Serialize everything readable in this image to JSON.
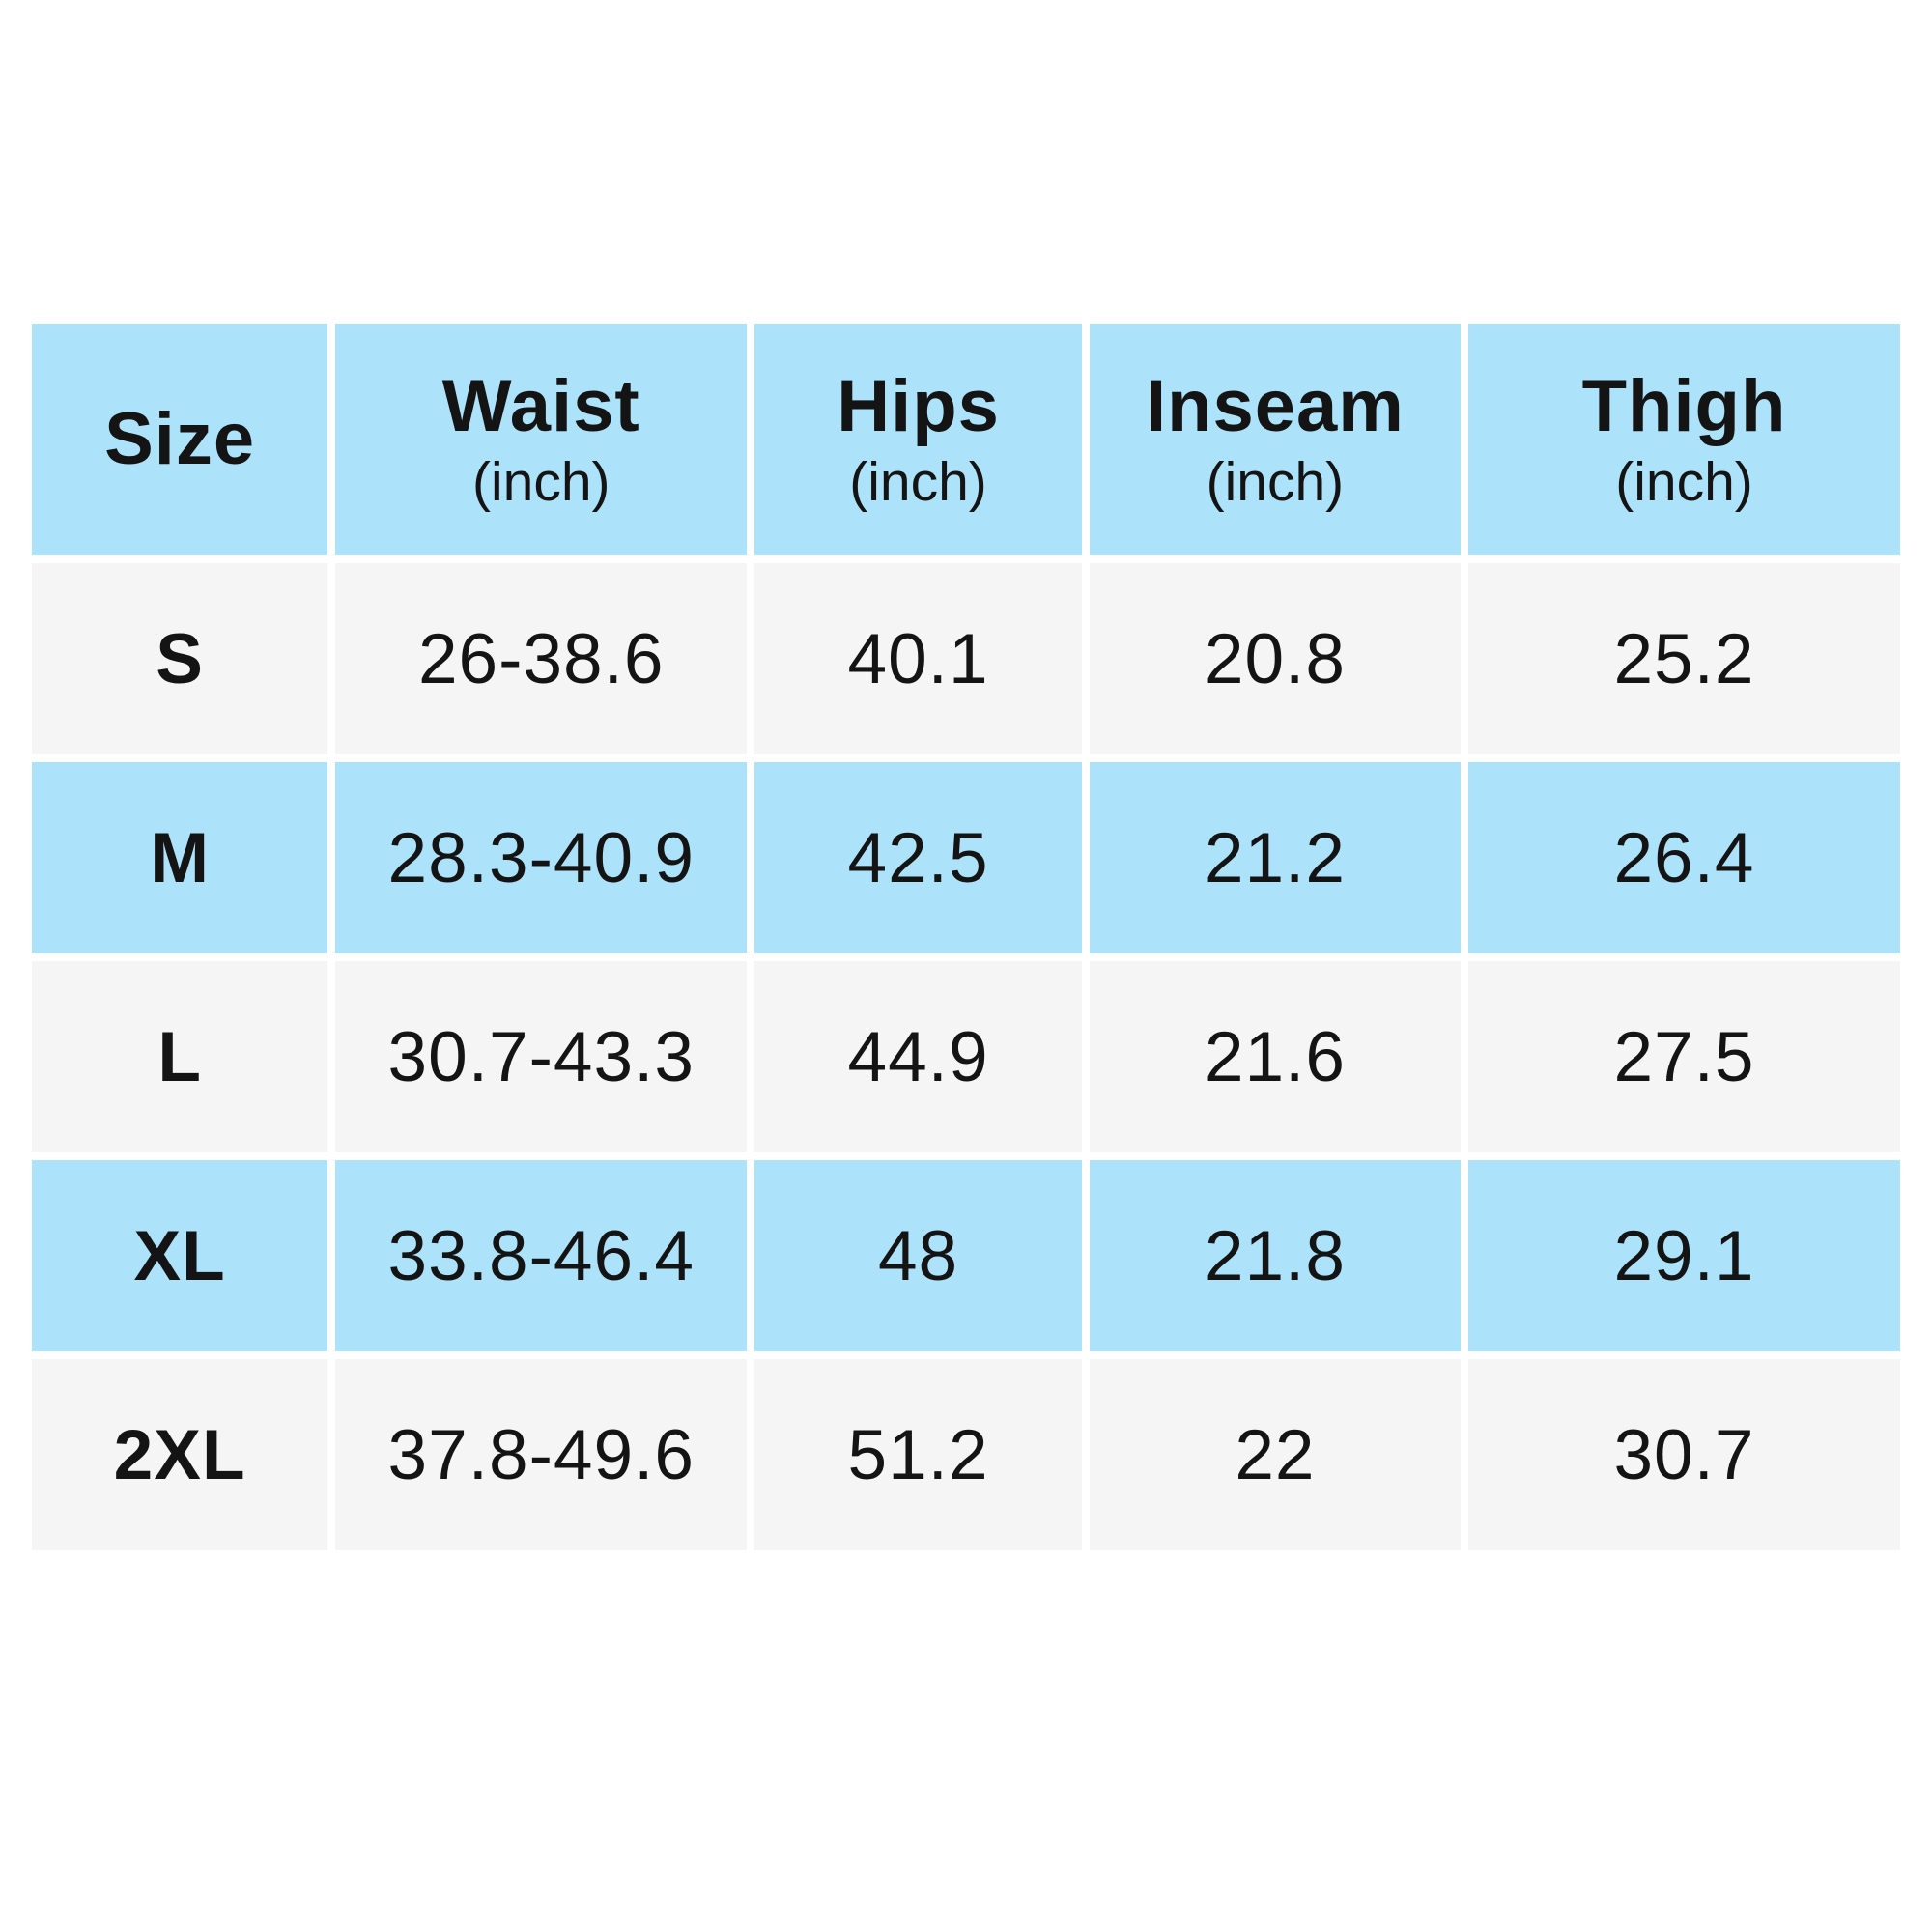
{
  "chart_data": {
    "type": "table",
    "columns": [
      {
        "label": "Size",
        "unit": ""
      },
      {
        "label": "Waist",
        "unit": "(inch)"
      },
      {
        "label": "Hips",
        "unit": "(inch)"
      },
      {
        "label": "Inseam",
        "unit": "(inch)"
      },
      {
        "label": "Thigh",
        "unit": "(inch)"
      }
    ],
    "rows": [
      {
        "size": "S",
        "waist": "26-38.6",
        "hips": "40.1",
        "inseam": "20.8",
        "thigh": "25.2"
      },
      {
        "size": "M",
        "waist": "28.3-40.9",
        "hips": "42.5",
        "inseam": "21.2",
        "thigh": "26.4"
      },
      {
        "size": "L",
        "waist": "30.7-43.3",
        "hips": "44.9",
        "inseam": "21.6",
        "thigh": "27.5"
      },
      {
        "size": "XL",
        "waist": "33.8-46.4",
        "hips": "48",
        "inseam": "21.8",
        "thigh": "29.1"
      },
      {
        "size": "2XL",
        "waist": "37.8-49.6",
        "hips": "51.2",
        "inseam": "22",
        "thigh": "30.7"
      }
    ]
  },
  "colors": {
    "page_bg": "#FFFFFF",
    "header_bg": "#ADE2FB",
    "row_alt_bg": "#ADE2FB",
    "row_bg": "#F5F5F5",
    "text": "#141414"
  }
}
